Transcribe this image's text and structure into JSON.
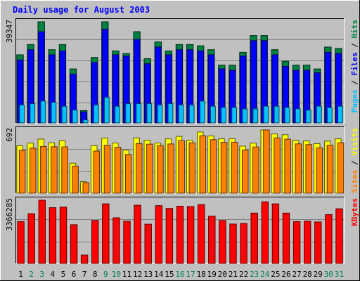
{
  "chart_data": {
    "type": "bar",
    "title": "Daily usage for August 2003",
    "categories": [
      "1",
      "2",
      "3",
      "4",
      "5",
      "6",
      "7",
      "8",
      "9",
      "10",
      "11",
      "12",
      "13",
      "14",
      "15",
      "16",
      "17",
      "18",
      "19",
      "20",
      "21",
      "22",
      "23",
      "24",
      "25",
      "26",
      "27",
      "28",
      "29",
      "30",
      "31"
    ],
    "weekend_days": [
      "2",
      "3",
      "9",
      "10",
      "16",
      "17",
      "23",
      "24",
      "30",
      "31"
    ],
    "panels": [
      {
        "id": "top",
        "scale_label": "39347",
        "ylim": [
          0,
          39347
        ],
        "legend": [
          "Pages",
          "Files",
          "Hits"
        ],
        "series": [
          {
            "name": "Hits",
            "values": [
              26500,
              30500,
              39347,
              28500,
              30500,
              21000,
              4800,
              25500,
              39347,
              28000,
              27000,
              35500,
              25000,
              31500,
              28000,
              30500,
              30500,
              30000,
              28500,
              22500,
              22500,
              27500,
              34000,
              34000,
              28500,
              24000,
              22500,
              22500,
              21000,
              29500,
              29000
            ]
          },
          {
            "name": "Files",
            "values": [
              24500,
              28500,
              35500,
              26500,
              28000,
              19000,
              4300,
              23500,
              36500,
              26500,
              26000,
              32500,
              23000,
              29500,
              26500,
              28500,
              28500,
              28000,
              26500,
              21000,
              20500,
              26000,
              32000,
              32000,
              26500,
              22000,
              20500,
              20500,
              19500,
              27500,
              27000
            ]
          },
          {
            "name": "Pages",
            "values": [
              7000,
              7500,
              8500,
              8000,
              6500,
              5000,
              1200,
              7000,
              10000,
              6500,
              7500,
              7500,
              7500,
              7000,
              7500,
              7000,
              7000,
              8500,
              6500,
              6000,
              6000,
              5500,
              5500,
              6500,
              6500,
              6000,
              5500,
              5000,
              6500,
              6000,
              6500
            ]
          }
        ]
      },
      {
        "id": "middle",
        "scale_label": "692",
        "ylim": [
          0,
          692
        ],
        "legend": [
          "Sites",
          "Visits"
        ],
        "series": [
          {
            "name": "Visits",
            "values": [
              520,
              548,
              592,
              552,
              575,
              328,
              126,
              520,
              603,
              549,
              471,
              605,
              580,
              549,
              595,
              622,
              578,
              670,
              626,
              595,
              596,
              515,
              548,
              692,
              648,
              640,
              577,
              572,
              543,
              570,
              595
            ]
          },
          {
            "name": "Sites",
            "values": [
              470,
              493,
              512,
              508,
              507,
              297,
              115,
              461,
              524,
              502,
              424,
              543,
              537,
              521,
              539,
              575,
              552,
              629,
              586,
              556,
              557,
              473,
              506,
              692,
              605,
              591,
              540,
              532,
              495,
              524,
              552
            ]
          }
        ]
      },
      {
        "id": "bottom",
        "scale_label": "3366285",
        "ylim": [
          0,
          3366285
        ],
        "legend": [
          "KBytes"
        ],
        "series": [
          {
            "name": "KBytes",
            "values": [
              2230000,
              2650000,
              3366285,
              2970000,
              3000000,
              2060000,
              445000,
              2290000,
              3170000,
              2430000,
              2250000,
              3100000,
              2090000,
              3080000,
              2930000,
              3050000,
              3030000,
              3130000,
              2520000,
              2290000,
              2100000,
              2130000,
              2680000,
              3280000,
              3170000,
              2680000,
              2230000,
              2250000,
              2210000,
              2600000,
              2910000
            ]
          }
        ]
      }
    ],
    "colors": {
      "background": "#c0c0c0",
      "plot_background": "#c0c0c0",
      "grid": "#808080",
      "title": "#0000ff",
      "day_label": "#000000",
      "weekend_day_label": "#00805c",
      "Hits": "#008040",
      "Files": "#0000ff",
      "Pages": "#00c0ff",
      "Visits": "#ffff00",
      "Sites": "#ff8000",
      "KBytes": "#ff0000",
      "legend_separator": "#000000"
    }
  }
}
